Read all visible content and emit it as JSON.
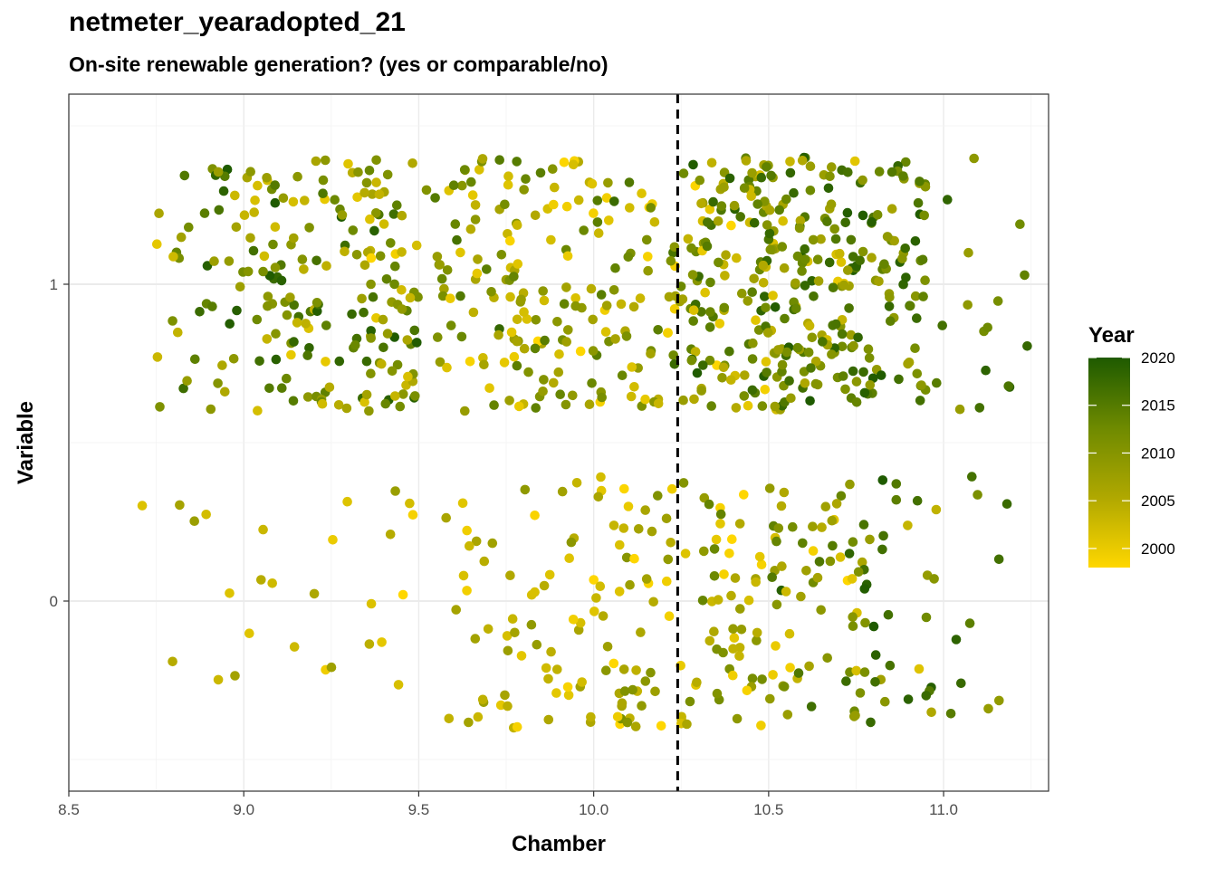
{
  "chart_data": {
    "type": "scatter",
    "title": "netmeter_yearadopted_21",
    "subtitle": "On-site renewable generation? (yes or comparable/no)",
    "xlabel": "Chamber",
    "ylabel": "Variable",
    "xlim": [
      8.5,
      11.3
    ],
    "ylim": [
      -0.6,
      1.6
    ],
    "x_ticks": [
      8.5,
      9.0,
      9.5,
      10.0,
      10.5,
      11.0
    ],
    "x_tick_labels": [
      "8.5",
      "9.0",
      "9.5",
      "10.0",
      "10.5",
      "11.0"
    ],
    "y_ticks": [
      0,
      1
    ],
    "y_tick_labels": [
      "0",
      "1"
    ],
    "vline": {
      "x": 10.24,
      "style": "dashed",
      "color": "#000000"
    },
    "jitter": {
      "x": 0.25,
      "y": 0.4
    },
    "grid": true,
    "legend": {
      "title": "Year",
      "placement": "right",
      "type": "colorbar",
      "range": [
        1998,
        2020
      ],
      "ticks": [
        2000,
        2005,
        2010,
        2015,
        2020
      ],
      "tick_labels": [
        "2000",
        "2005",
        "2010",
        "2015",
        "2020"
      ],
      "colors": [
        "#FFD700",
        "#B0A800",
        "#6E8A00",
        "#1E5A00"
      ]
    },
    "groups": [
      {
        "variable": 1,
        "chamber": 9.0,
        "n": 70,
        "year_range": [
          2000,
          2020
        ]
      },
      {
        "variable": 1,
        "chamber": 9.25,
        "n": 120,
        "year_range": [
          2000,
          2020
        ]
      },
      {
        "variable": 1,
        "chamber": 9.55,
        "n": 60,
        "year_range": [
          1998,
          2018
        ]
      },
      {
        "variable": 1,
        "chamber": 9.8,
        "n": 60,
        "year_range": [
          1998,
          2015
        ]
      },
      {
        "variable": 1,
        "chamber": 10.0,
        "n": 70,
        "year_range": [
          1998,
          2015
        ]
      },
      {
        "variable": 1,
        "chamber": 10.24,
        "n": 60,
        "year_range": [
          1998,
          2018
        ]
      },
      {
        "variable": 1,
        "chamber": 10.5,
        "n": 150,
        "year_range": [
          2000,
          2020
        ]
      },
      {
        "variable": 1,
        "chamber": 10.7,
        "n": 150,
        "year_range": [
          2005,
          2020
        ]
      },
      {
        "variable": 1,
        "chamber": 11.0,
        "n": 30,
        "year_range": [
          2008,
          2020
        ]
      },
      {
        "variable": 0,
        "chamber": 8.95,
        "n": 12,
        "year_range": [
          2001,
          2008
        ]
      },
      {
        "variable": 0,
        "chamber": 9.25,
        "n": 10,
        "year_range": [
          1998,
          2008
        ]
      },
      {
        "variable": 0,
        "chamber": 9.55,
        "n": 15,
        "year_range": [
          1998,
          2008
        ]
      },
      {
        "variable": 0,
        "chamber": 9.85,
        "n": 40,
        "year_range": [
          1998,
          2008
        ]
      },
      {
        "variable": 0,
        "chamber": 10.05,
        "n": 40,
        "year_range": [
          1998,
          2010
        ]
      },
      {
        "variable": 0,
        "chamber": 10.3,
        "n": 60,
        "year_range": [
          1998,
          2012
        ]
      },
      {
        "variable": 0,
        "chamber": 10.55,
        "n": 50,
        "year_range": [
          1998,
          2015
        ]
      },
      {
        "variable": 0,
        "chamber": 10.75,
        "n": 40,
        "year_range": [
          2000,
          2020
        ]
      },
      {
        "variable": 0,
        "chamber": 10.95,
        "n": 30,
        "year_range": [
          2008,
          2020
        ]
      }
    ]
  }
}
